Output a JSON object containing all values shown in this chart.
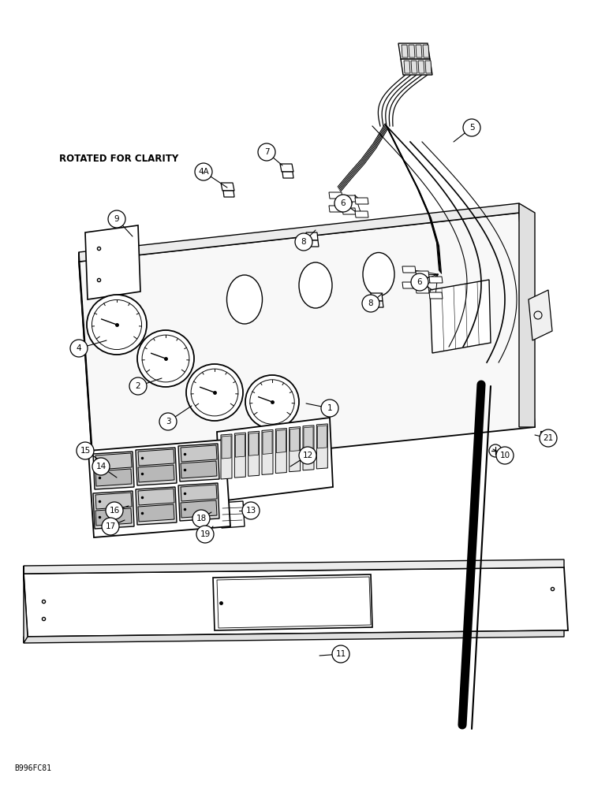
{
  "background_color": "#ffffff",
  "figure_code": "B996FC81",
  "labels_config": [
    [
      "1",
      418,
      518,
      388,
      512
    ],
    [
      "2",
      175,
      490,
      205,
      480
    ],
    [
      "3",
      213,
      535,
      243,
      515
    ],
    [
      "4",
      100,
      442,
      135,
      432
    ],
    [
      "4A",
      258,
      218,
      288,
      238
    ],
    [
      "5",
      598,
      162,
      575,
      180
    ],
    [
      "6",
      435,
      258,
      450,
      268
    ],
    [
      "6",
      532,
      358,
      548,
      368
    ],
    [
      "7",
      338,
      193,
      358,
      210
    ],
    [
      "8",
      385,
      307,
      400,
      292
    ],
    [
      "8",
      470,
      385,
      485,
      372
    ],
    [
      "9",
      148,
      278,
      168,
      300
    ],
    [
      "10",
      640,
      578,
      625,
      570
    ],
    [
      "11",
      432,
      830,
      405,
      832
    ],
    [
      "12",
      390,
      578,
      368,
      592
    ],
    [
      "13",
      318,
      648,
      303,
      648
    ],
    [
      "14",
      128,
      592,
      148,
      606
    ],
    [
      "15",
      108,
      572,
      128,
      585
    ],
    [
      "16",
      145,
      648,
      163,
      642
    ],
    [
      "17",
      140,
      668,
      158,
      660
    ],
    [
      "18",
      255,
      658,
      268,
      650
    ],
    [
      "19",
      260,
      678,
      270,
      668
    ],
    [
      "21",
      695,
      556,
      678,
      552
    ]
  ]
}
